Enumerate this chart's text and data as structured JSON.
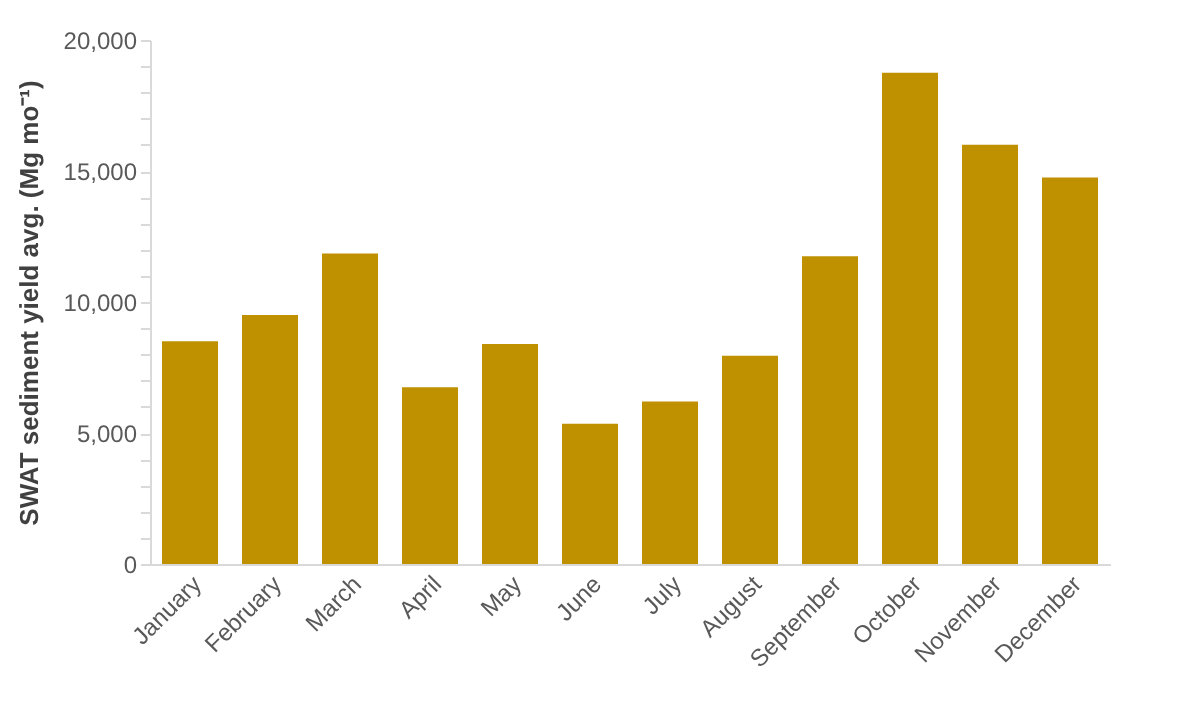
{
  "chart_data": {
    "type": "bar",
    "ylabel": "SWAT sediment yield avg. (Mg mo⁻¹)",
    "categories": [
      "January",
      "February",
      "March",
      "April",
      "May",
      "June",
      "July",
      "August",
      "September",
      "October",
      "November",
      "December"
    ],
    "values": [
      8500,
      9500,
      11850,
      6750,
      8400,
      5350,
      6200,
      7950,
      11750,
      18750,
      16000,
      14750
    ],
    "color": "#bf9000",
    "ylim": [
      0,
      20000
    ],
    "yticks": [
      0,
      {
        "value": 1000,
        "label": null
      },
      {
        "value": 2000,
        "label": null
      },
      {
        "value": 3000,
        "label": null
      },
      {
        "value": 4000,
        "label": null
      },
      {
        "value": 5000,
        "label": "5,000"
      },
      {
        "value": 6000,
        "label": null
      },
      {
        "value": 7000,
        "label": null
      },
      {
        "value": 8000,
        "label": null
      },
      {
        "value": 9000,
        "label": null
      },
      {
        "value": 10000,
        "label": "10,000"
      },
      {
        "value": 11000,
        "label": null
      },
      {
        "value": 12000,
        "label": null
      },
      {
        "value": 13000,
        "label": null
      },
      {
        "value": 14000,
        "label": null
      },
      {
        "value": 15000,
        "label": "15,000"
      },
      {
        "value": 16000,
        "label": null
      },
      {
        "value": 17000,
        "label": null
      },
      {
        "value": 18000,
        "label": null
      },
      {
        "value": 19000,
        "label": null
      },
      {
        "value": 20000,
        "label": "20,000"
      }
    ],
    "grid": false
  }
}
